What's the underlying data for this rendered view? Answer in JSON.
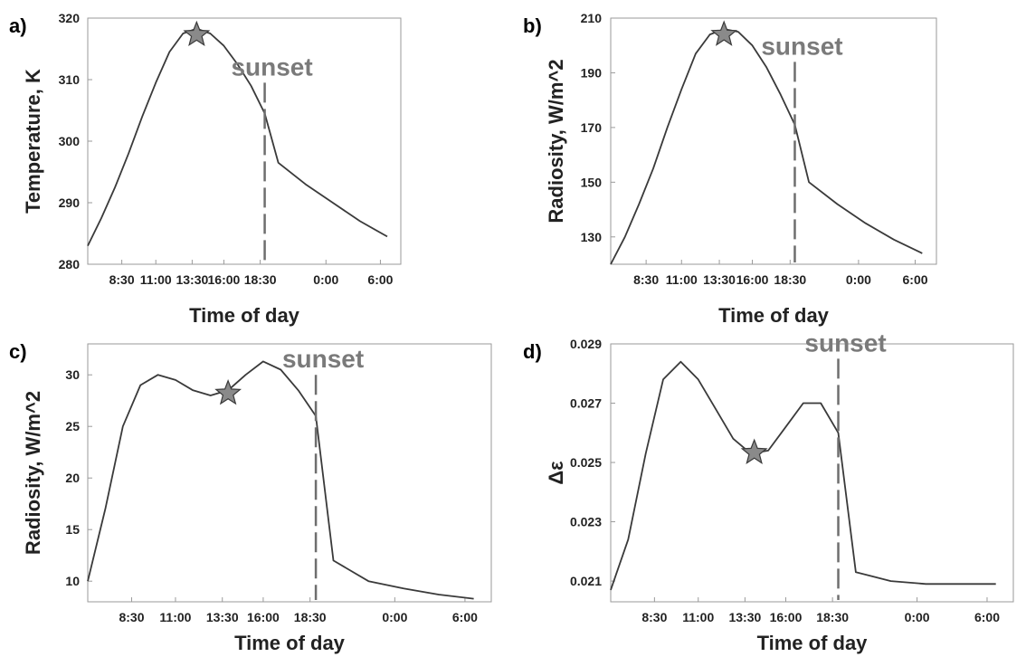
{
  "colors": {
    "line": "#3a3a3a",
    "star_fill": "#8a8a8a",
    "sunset": "#6e6e6e",
    "frame": "#9a9a9a"
  },
  "chart_data": [
    {
      "panel": "a)",
      "type": "line",
      "xlabel": "Time of day",
      "ylabel": "Temperature, K",
      "ylim": [
        280,
        320
      ],
      "yticks": [
        280,
        290,
        300,
        310,
        320
      ],
      "xlim": [
        0,
        23
      ],
      "xticks": [
        {
          "x": 2.5,
          "label": "8:30"
        },
        {
          "x": 5,
          "label": "11:00"
        },
        {
          "x": 7.67,
          "label": "13:30"
        },
        {
          "x": 10,
          "label": "16:00"
        },
        {
          "x": 12.67,
          "label": "18:30"
        },
        {
          "x": 17.5,
          "label": "0:00"
        },
        {
          "x": 21.5,
          "label": "6:00"
        }
      ],
      "x": [
        0,
        1,
        2,
        3,
        4,
        5,
        6,
        7,
        8,
        9,
        10,
        11,
        12,
        13,
        14,
        16,
        18,
        20,
        22
      ],
      "y": [
        283,
        287.5,
        292.5,
        298,
        304,
        309.5,
        314.5,
        317.5,
        318.3,
        317.5,
        315.5,
        312.5,
        309,
        304.5,
        296.5,
        293,
        290,
        287,
        284.5
      ],
      "star": {
        "x": 8.0,
        "y": 317.3
      },
      "sunset": {
        "x": 13.0,
        "y_top": 309.5,
        "label": "sunset"
      }
    },
    {
      "panel": "b)",
      "type": "line",
      "xlabel": "Time of day",
      "ylabel": "Radiosity, W/m^2",
      "ylim": [
        120,
        210
      ],
      "yticks": [
        130,
        150,
        170,
        190,
        210
      ],
      "xlim": [
        0,
        23
      ],
      "xticks": [
        {
          "x": 2.5,
          "label": "8:30"
        },
        {
          "x": 5,
          "label": "11:00"
        },
        {
          "x": 7.67,
          "label": "13:30"
        },
        {
          "x": 10,
          "label": "16:00"
        },
        {
          "x": 12.67,
          "label": "18:30"
        },
        {
          "x": 17.5,
          "label": "0:00"
        },
        {
          "x": 21.5,
          "label": "6:00"
        }
      ],
      "x": [
        0,
        1,
        2,
        3,
        4,
        5,
        6,
        7,
        8,
        9,
        10,
        11,
        12,
        13,
        14,
        16,
        18,
        20,
        22
      ],
      "y": [
        120,
        130,
        142,
        155,
        170,
        184,
        197,
        204,
        206,
        205,
        200,
        192,
        182,
        171,
        150,
        142,
        135,
        129,
        124
      ],
      "star": {
        "x": 8.0,
        "y": 204
      },
      "sunset": {
        "x": 13.0,
        "y_top": 194,
        "label": "sunset"
      }
    },
    {
      "panel": "c)",
      "type": "line",
      "xlabel": "Time of day",
      "ylabel": "Radiosity, W/m^2",
      "ylim": [
        8,
        33
      ],
      "yticks": [
        10,
        15,
        20,
        25,
        30
      ],
      "xlim": [
        0,
        23
      ],
      "xticks": [
        {
          "x": 2.5,
          "label": "8:30"
        },
        {
          "x": 5,
          "label": "11:00"
        },
        {
          "x": 7.67,
          "label": "13:30"
        },
        {
          "x": 10,
          "label": "16:00"
        },
        {
          "x": 12.67,
          "label": "18:30"
        },
        {
          "x": 17.5,
          "label": "0:00"
        },
        {
          "x": 21.5,
          "label": "6:00"
        }
      ],
      "x": [
        0,
        1,
        2,
        3,
        4,
        5,
        6,
        7,
        8,
        9,
        10,
        11,
        12,
        13,
        14,
        16,
        18,
        20,
        22
      ],
      "y": [
        10,
        17,
        25,
        29,
        30,
        29.5,
        28.5,
        28,
        28.5,
        30,
        31.3,
        30.5,
        28.5,
        26,
        12,
        10,
        9.3,
        8.7,
        8.3
      ],
      "star": {
        "x": 8.0,
        "y": 28.2
      },
      "sunset": {
        "x": 13.0,
        "y_top": 30,
        "label": "sunset"
      }
    },
    {
      "panel": "d)",
      "type": "line",
      "xlabel": "Time of day",
      "ylabel": "Δε",
      "ylim": [
        0.0203,
        0.029
      ],
      "yticks": [
        0.021,
        0.023,
        0.025,
        0.027,
        0.029
      ],
      "ytick_labels": [
        "0.021",
        "0.023",
        "0.025",
        "0.027",
        "0.029"
      ],
      "xlim": [
        0,
        23
      ],
      "xticks": [
        {
          "x": 2.5,
          "label": "8:30"
        },
        {
          "x": 5,
          "label": "11:00"
        },
        {
          "x": 7.67,
          "label": "13:30"
        },
        {
          "x": 10,
          "label": "16:00"
        },
        {
          "x": 12.67,
          "label": "18:30"
        },
        {
          "x": 17.5,
          "label": "0:00"
        },
        {
          "x": 21.5,
          "label": "6:00"
        }
      ],
      "x": [
        0,
        1,
        2,
        3,
        4,
        5,
        6,
        7,
        8,
        9,
        10,
        11,
        12,
        13,
        14,
        16,
        18,
        20,
        22
      ],
      "y": [
        0.0207,
        0.0224,
        0.0253,
        0.0278,
        0.0284,
        0.0278,
        0.0268,
        0.0258,
        0.0253,
        0.0254,
        0.0262,
        0.027,
        0.027,
        0.026,
        0.0213,
        0.021,
        0.0209,
        0.0209,
        0.0209
      ],
      "star": {
        "x": 8.2,
        "y": 0.02533
      },
      "sunset": {
        "x": 13.0,
        "y_top": 0.0285,
        "label": "sunset"
      }
    }
  ]
}
